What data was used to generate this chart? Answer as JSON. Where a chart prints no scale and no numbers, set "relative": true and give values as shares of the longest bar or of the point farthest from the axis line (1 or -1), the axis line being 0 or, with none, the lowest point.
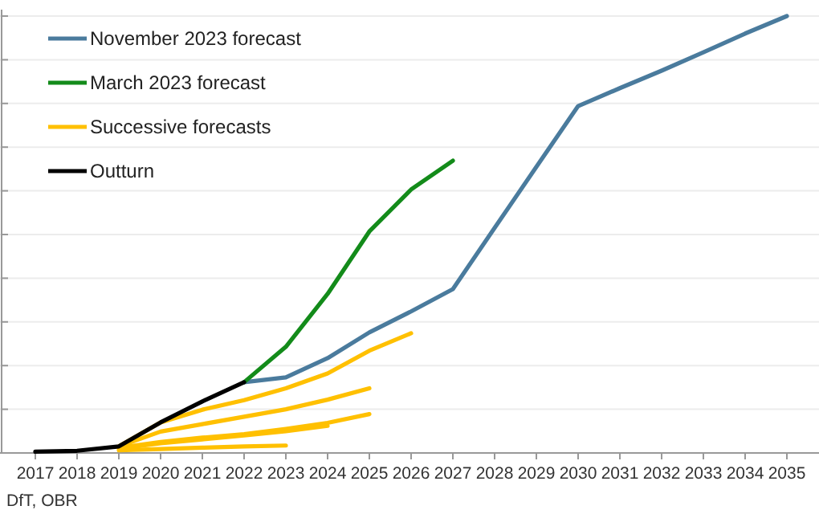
{
  "chart_data": {
    "type": "line",
    "relative": true,
    "categories": [
      "2017",
      "2018",
      "2019",
      "2020",
      "2021",
      "2022",
      "2023",
      "2024",
      "2025",
      "2026",
      "2027",
      "2028",
      "2029",
      "2030",
      "2031",
      "2032",
      "2033",
      "2034",
      "2035"
    ],
    "series": [
      {
        "name": "November 2023 forecast",
        "color": "#4a7b9d",
        "values": [
          null,
          null,
          null,
          null,
          null,
          0.162,
          0.173,
          0.217,
          0.276,
          0.324,
          0.375,
          0.515,
          0.655,
          0.794,
          0.835,
          0.875,
          0.917,
          0.96,
          1
        ]
      },
      {
        "name": "March 2023 forecast",
        "color": "#138b1a",
        "values": [
          null,
          null,
          null,
          null,
          null,
          0.162,
          0.243,
          0.364,
          0.507,
          0.603,
          0.669,
          null,
          null,
          null,
          null,
          null,
          null,
          null,
          null
        ]
      },
      {
        "name": "Successive forecasts",
        "color": "#ffc000",
        "values": [
          null,
          null,
          0.015,
          0.07,
          0.099,
          0.121,
          0.148,
          0.182,
          0.234,
          0.274,
          null,
          null,
          null,
          null,
          null,
          null,
          null,
          null,
          null
        ]
      },
      {
        "color": "#ffc000",
        "values": [
          null,
          null,
          0.015,
          0.049,
          0.066,
          0.083,
          0.1,
          0.122,
          0.148,
          null,
          null,
          null,
          null,
          null,
          null,
          null,
          null,
          null,
          null
        ]
      },
      {
        "color": "#ffc000",
        "values": [
          null,
          null,
          0.012,
          0.025,
          0.035,
          0.043,
          0.055,
          0.069,
          0.089,
          null,
          null,
          null,
          null,
          null,
          null,
          null,
          null,
          null,
          null
        ]
      },
      {
        "color": "#ffc000",
        "values": [
          null,
          null,
          0.01,
          0.022,
          0.031,
          0.04,
          0.05,
          0.062,
          null,
          null,
          null,
          null,
          null,
          null,
          null,
          null,
          null,
          null,
          null
        ]
      },
      {
        "color": "#ffc000",
        "values": [
          null,
          null,
          0.006,
          0.009,
          0.012,
          0.015,
          0.017,
          null,
          null,
          null,
          null,
          null,
          null,
          null,
          null,
          null,
          null,
          null,
          null
        ]
      },
      {
        "name": "Outturn",
        "color": "#000000",
        "values": [
          0.003,
          0.005,
          0.015,
          0.07,
          0.118,
          0.162,
          null,
          null,
          null,
          null,
          null,
          null,
          null,
          null,
          null,
          null,
          null,
          null,
          null
        ]
      }
    ],
    "grid": "y",
    "legend": "top left",
    "tick_labels": "x",
    "annotations": [
      "DfT, OBR"
    ]
  }
}
